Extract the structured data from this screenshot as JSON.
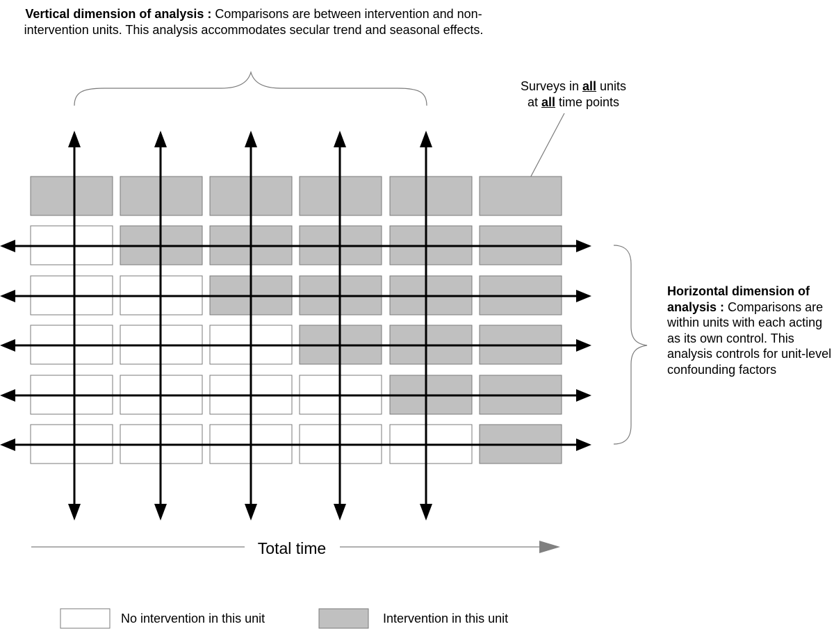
{
  "vertical_note": {
    "heading": "Vertical dimension of analysis :",
    "body": " Comparisons are between intervention and non-intervention units. This analysis accommodates secular trend and seasonal effects."
  },
  "survey_note": {
    "part1": "Surveys in ",
    "emph1": "all",
    "part2": " units",
    "part3": "at ",
    "emph2": "all",
    "part4": " time points"
  },
  "horizontal_note": {
    "heading": "Horizontal dimension of analysis :",
    "body": " Comparisons are within units with each acting as its own control. This analysis controls for unit-level confounding factors"
  },
  "time_label": "Total time",
  "legend": {
    "no_intervention": "No intervention in this unit",
    "intervention": "Intervention in this unit"
  },
  "colors": {
    "intervention": "#c0c0c0",
    "no_intervention": "#ffffff",
    "border": "#7a7a7a",
    "arrow": "#000000",
    "time_arrow": "#808080"
  },
  "grid": {
    "rows": 6,
    "columns": 6,
    "first_intervention_column_by_row": [
      0,
      1,
      2,
      3,
      4,
      5
    ]
  }
}
